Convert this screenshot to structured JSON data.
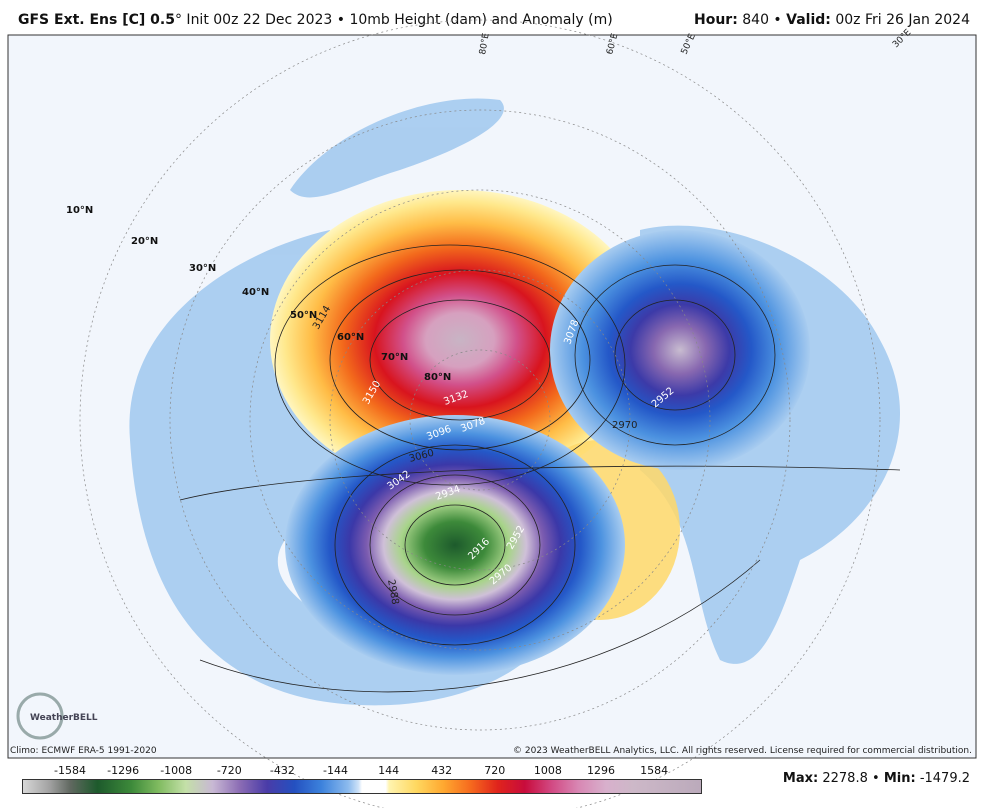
{
  "header": {
    "model": "GFS Ext.  Ens [C] 0.5",
    "title_rest": "° Init 00z 22 Dec 2023 • 10mb Height (dam) and Anomaly (m)",
    "hour_label": "Hour:",
    "hour": "840 •",
    "valid_label": "Valid:",
    "valid": "00z Fri 26 Jan 2024"
  },
  "map": {
    "latitude_labels": [
      "10°N",
      "20°N",
      "30°N",
      "40°N",
      "50°N",
      "60°N",
      "70°N",
      "80°N"
    ],
    "longitude_labels": [
      "80°E",
      "60°E",
      "50°E",
      "30°E"
    ],
    "contour_labels": [
      "3114",
      "3150",
      "3132",
      "3096",
      "3078",
      "3060",
      "3042",
      "3078",
      "2970",
      "2952",
      "2934",
      "2916",
      "2988",
      "2952",
      "2970"
    ],
    "logo": "WeatherBELL"
  },
  "footer": {
    "climo": "Climo: ECMWF ERA-5 1991-2020",
    "copyright": "© 2023 WeatherBELL Analytics, LLC. All rights reserved. License required for commercial distribution."
  },
  "colorbar": {
    "ticks": [
      -1584,
      -1296,
      -1008,
      -720,
      -432,
      -144,
      144,
      432,
      720,
      1008,
      1296,
      1584
    ]
  },
  "stats": {
    "max_label": "Max:",
    "max": 2278.8,
    "sep": "•",
    "min_label": "Min:",
    "min": -1479.2
  }
}
